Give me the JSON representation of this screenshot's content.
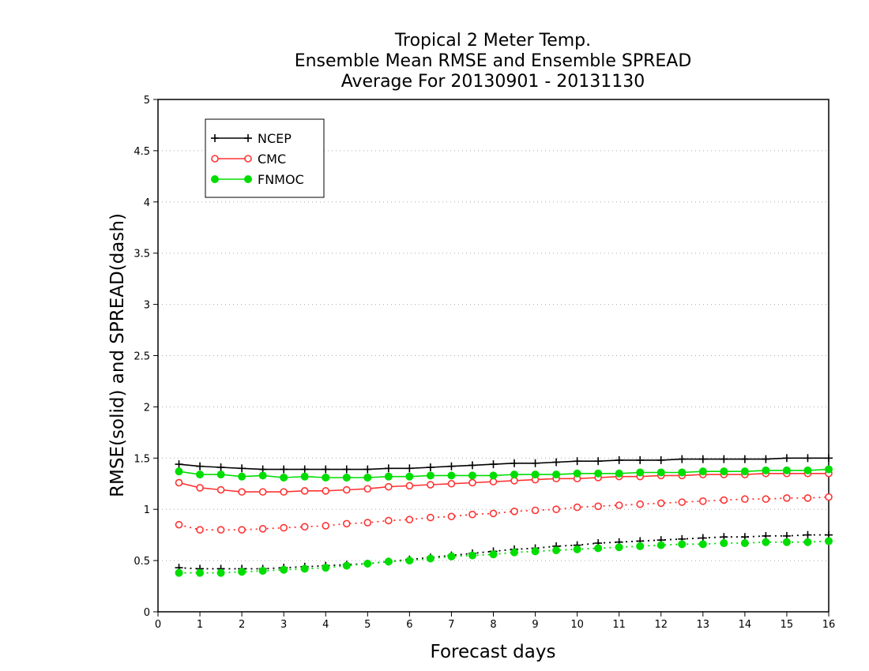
{
  "chart_data": {
    "type": "line",
    "title": [
      "Tropical 2 Meter Temp.",
      "Ensemble Mean RMSE and Ensemble SPREAD",
      "Average For 20130901 - 20131130"
    ],
    "xlabel": "Forecast days",
    "ylabel": "RMSE(solid) and SPREAD(dash)",
    "xlim": [
      0,
      16
    ],
    "ylim": [
      0,
      5
    ],
    "xticks": [
      "0",
      "1",
      "2",
      "3",
      "4",
      "5",
      "6",
      "7",
      "8",
      "9",
      "10",
      "11",
      "12",
      "13",
      "14",
      "15",
      "16"
    ],
    "yticks": [
      "0",
      "0.5",
      "1",
      "1.5",
      "2",
      "2.5",
      "3",
      "3.5",
      "4",
      "4.5",
      "5"
    ],
    "grid": true,
    "legend_position": "top-left",
    "x": [
      0.5,
      1,
      1.5,
      2,
      2.5,
      3,
      3.5,
      4,
      4.5,
      5,
      5.5,
      6,
      6.5,
      7,
      7.5,
      8,
      8.5,
      9,
      9.5,
      10,
      10.5,
      11,
      11.5,
      12,
      12.5,
      13,
      13.5,
      14,
      14.5,
      15,
      15.5,
      16
    ],
    "series": [
      {
        "name": "NCEP",
        "color": "#000000",
        "marker": "plus",
        "rmse": [
          1.44,
          1.42,
          1.41,
          1.4,
          1.39,
          1.39,
          1.39,
          1.39,
          1.39,
          1.39,
          1.4,
          1.4,
          1.41,
          1.42,
          1.43,
          1.44,
          1.45,
          1.45,
          1.46,
          1.47,
          1.47,
          1.48,
          1.48,
          1.48,
          1.49,
          1.49,
          1.49,
          1.49,
          1.49,
          1.5,
          1.5,
          1.5
        ],
        "spread": [
          0.43,
          0.42,
          0.42,
          0.42,
          0.42,
          0.43,
          0.44,
          0.45,
          0.46,
          0.47,
          0.49,
          0.51,
          0.53,
          0.55,
          0.57,
          0.59,
          0.61,
          0.62,
          0.64,
          0.65,
          0.67,
          0.68,
          0.69,
          0.7,
          0.71,
          0.72,
          0.73,
          0.73,
          0.74,
          0.74,
          0.75,
          0.75
        ]
      },
      {
        "name": "CMC",
        "color": "#ff3333",
        "marker": "open-circle",
        "rmse": [
          1.26,
          1.21,
          1.19,
          1.17,
          1.17,
          1.17,
          1.18,
          1.18,
          1.19,
          1.2,
          1.22,
          1.23,
          1.24,
          1.25,
          1.26,
          1.27,
          1.28,
          1.29,
          1.3,
          1.3,
          1.31,
          1.32,
          1.32,
          1.33,
          1.33,
          1.34,
          1.34,
          1.34,
          1.35,
          1.35,
          1.35,
          1.35
        ],
        "spread": [
          0.85,
          0.8,
          0.8,
          0.8,
          0.81,
          0.82,
          0.83,
          0.84,
          0.86,
          0.87,
          0.89,
          0.9,
          0.92,
          0.93,
          0.95,
          0.96,
          0.98,
          0.99,
          1.0,
          1.02,
          1.03,
          1.04,
          1.05,
          1.06,
          1.07,
          1.08,
          1.09,
          1.1,
          1.1,
          1.11,
          1.11,
          1.12
        ]
      },
      {
        "name": "FNMOC",
        "color": "#00dd00",
        "marker": "filled-circle",
        "rmse": [
          1.37,
          1.34,
          1.34,
          1.32,
          1.33,
          1.31,
          1.32,
          1.31,
          1.31,
          1.31,
          1.32,
          1.32,
          1.33,
          1.33,
          1.33,
          1.33,
          1.34,
          1.34,
          1.34,
          1.35,
          1.35,
          1.35,
          1.36,
          1.36,
          1.36,
          1.37,
          1.37,
          1.37,
          1.38,
          1.38,
          1.38,
          1.39
        ],
        "spread": [
          0.38,
          0.38,
          0.38,
          0.39,
          0.4,
          0.41,
          0.42,
          0.43,
          0.45,
          0.47,
          0.49,
          0.5,
          0.52,
          0.54,
          0.55,
          0.56,
          0.58,
          0.59,
          0.6,
          0.61,
          0.62,
          0.63,
          0.64,
          0.65,
          0.66,
          0.66,
          0.67,
          0.67,
          0.68,
          0.68,
          0.68,
          0.69
        ]
      }
    ]
  }
}
